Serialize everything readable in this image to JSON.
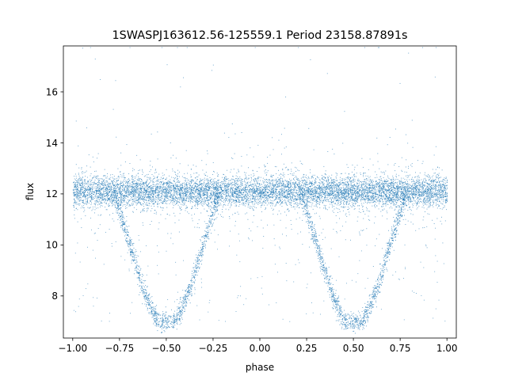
{
  "chart_data": {
    "type": "scatter",
    "title": "1SWASPJ163612.56-125559.1 Period 23158.87891s",
    "xlabel": "phase",
    "ylabel": "flux",
    "xlim": [
      -1.05,
      1.05
    ],
    "ylim": [
      6.35,
      17.8
    ],
    "xticks": [
      -1.0,
      -0.75,
      -0.5,
      -0.25,
      0.0,
      0.25,
      0.5,
      0.75,
      1.0
    ],
    "xtick_labels": [
      "−1.00",
      "−0.75",
      "−0.50",
      "−0.25",
      "0.00",
      "0.25",
      "0.50",
      "0.75",
      "1.00"
    ],
    "yticks": [
      8,
      10,
      12,
      14,
      16
    ],
    "ytick_labels": [
      "8",
      "10",
      "12",
      "14",
      "16"
    ],
    "grid": false,
    "point_color": "#1f77b4",
    "baseline_flux": 12.1,
    "series": [
      {
        "x_range": [
          -1.0,
          1.0
        ],
        "baseline_flux": 12.1,
        "eclipse_profile": [
          {
            "phase": -0.78,
            "flux": 12.0
          },
          {
            "phase": -0.7,
            "flux": 10.1
          },
          {
            "phase": -0.62,
            "flux": 8.2
          },
          {
            "phase": -0.55,
            "flux": 7.0
          },
          {
            "phase": -0.45,
            "flux": 7.0
          },
          {
            "phase": -0.38,
            "flux": 8.2
          },
          {
            "phase": -0.3,
            "flux": 10.1
          },
          {
            "phase": -0.22,
            "flux": 12.0
          },
          {
            "phase": 0.22,
            "flux": 12.0
          },
          {
            "phase": 0.3,
            "flux": 10.1
          },
          {
            "phase": 0.38,
            "flux": 8.2
          },
          {
            "phase": 0.45,
            "flux": 7.0
          },
          {
            "phase": 0.55,
            "flux": 7.0
          },
          {
            "phase": 0.62,
            "flux": 8.2
          },
          {
            "phase": 0.7,
            "flux": 10.1
          },
          {
            "phase": 0.78,
            "flux": 12.0
          }
        ]
      }
    ]
  }
}
